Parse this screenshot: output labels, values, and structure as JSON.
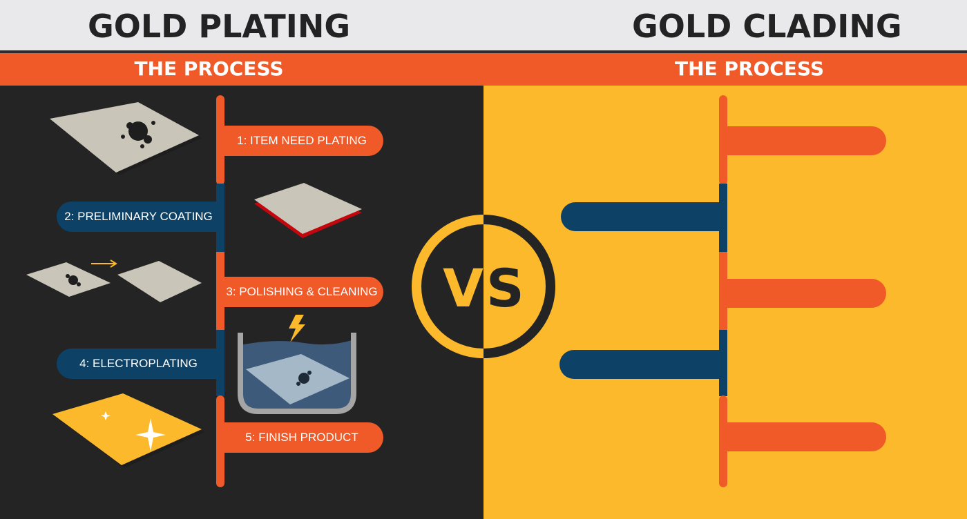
{
  "header": {
    "left_title": "GOLD PLATING",
    "right_title": "GOLD CLADING"
  },
  "band": {
    "left_label": "THE PROCESS",
    "right_label": "THE PROCESS"
  },
  "left_steps": [
    {
      "label": "1: ITEM NEED PLATING"
    },
    {
      "label": "2: PRELIMINARY COATING"
    },
    {
      "label": "3: POLISHING & CLEANING"
    },
    {
      "label": "4: ELECTROPLATING"
    },
    {
      "label": "5: FINISH PRODUCT"
    }
  ],
  "vs_badge": {
    "text_v": "V",
    "text_s": "S"
  },
  "colors": {
    "orange": "#f05a28",
    "navy": "#0d4266",
    "gold": "#fdb92c",
    "dark": "#242424",
    "header_bg": "#e9e9ec"
  },
  "icons": [
    "stained-plate-icon",
    "coated-plate-icon",
    "polish-arrow-icon",
    "clean-plate-icon",
    "lightning-bolt-icon",
    "plating-tank-icon",
    "sparkle-icon",
    "gold-plate-icon"
  ]
}
